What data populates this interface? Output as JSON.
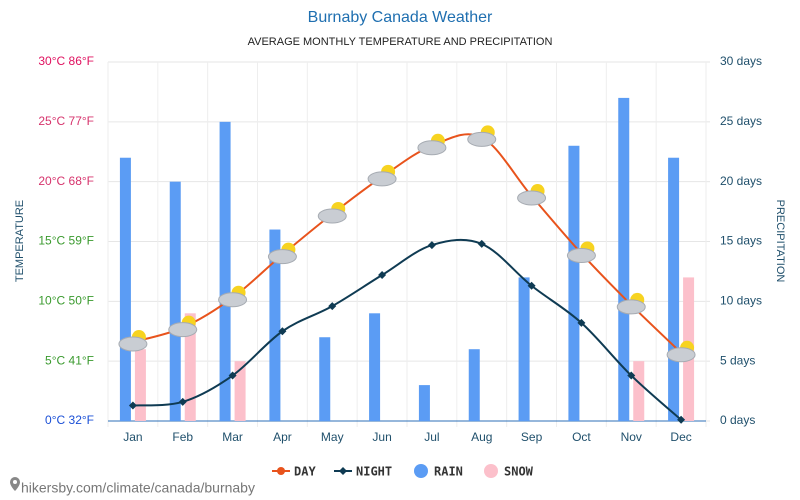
{
  "chart_data": {
    "type": "combo",
    "title": "Burnaby Canada Weather",
    "subtitle": "AVERAGE MONTHLY TEMPERATURE AND PRECIPITATION",
    "y_label": "TEMPERATURE",
    "y2_label": "PRECIPITATION",
    "footer": "hikersby.com/climate/canada/burnaby",
    "categories": [
      "Jan",
      "Feb",
      "Mar",
      "Apr",
      "May",
      "Jun",
      "Jul",
      "Aug",
      "Sep",
      "Oct",
      "Nov",
      "Dec"
    ],
    "ylim": [
      0,
      30
    ],
    "yticks": [
      {
        "value": 0,
        "label": "0°C 32°F"
      },
      {
        "value": 5,
        "label": "5°C 41°F"
      },
      {
        "value": 10,
        "label": "10°C 50°F"
      },
      {
        "value": 15,
        "label": "15°C 59°F"
      },
      {
        "value": 20,
        "label": "20°C 68°F"
      },
      {
        "value": 25,
        "label": "25°C 77°F"
      },
      {
        "value": 30,
        "label": "30°C 86°F"
      }
    ],
    "ytick_colors": [
      "#1a4fd6",
      "#3a9a2e",
      "#3a9a2e",
      "#3a9a2e",
      "#d6336c",
      "#d6336c",
      "#e0115f"
    ],
    "y2lim": [
      0,
      30
    ],
    "y2ticks": [
      {
        "value": 0,
        "label": "0 days"
      },
      {
        "value": 5,
        "label": "5 days"
      },
      {
        "value": 10,
        "label": "10 days"
      },
      {
        "value": 15,
        "label": "15 days"
      },
      {
        "value": 20,
        "label": "20 days"
      },
      {
        "value": 25,
        "label": "25 days"
      },
      {
        "value": 30,
        "label": "30 days"
      }
    ],
    "grid": true,
    "legend": "bottom",
    "series": [
      {
        "name": "DAY",
        "type": "line",
        "color": "#e8531c",
        "values": [
          6.6,
          7.8,
          10.3,
          13.9,
          17.3,
          20.4,
          23.0,
          23.7,
          18.8,
          14.0,
          9.7,
          5.7
        ]
      },
      {
        "name": "NIGHT",
        "type": "line",
        "color": "#0f3b53",
        "values": [
          1.3,
          1.6,
          3.8,
          7.5,
          9.6,
          12.2,
          14.7,
          14.8,
          11.3,
          8.2,
          3.8,
          0.1
        ]
      },
      {
        "name": "RAIN",
        "type": "bar",
        "axis": "y2",
        "color": "#5b9cf4",
        "values": [
          22,
          20,
          25,
          16,
          7,
          9,
          3,
          6,
          12,
          23,
          27,
          22
        ]
      },
      {
        "name": "SNOW",
        "type": "bar",
        "axis": "y2",
        "color": "#fcc0cb",
        "values": [
          6,
          9,
          5,
          0,
          0,
          0,
          0,
          0,
          0,
          0,
          5,
          12
        ]
      }
    ]
  }
}
